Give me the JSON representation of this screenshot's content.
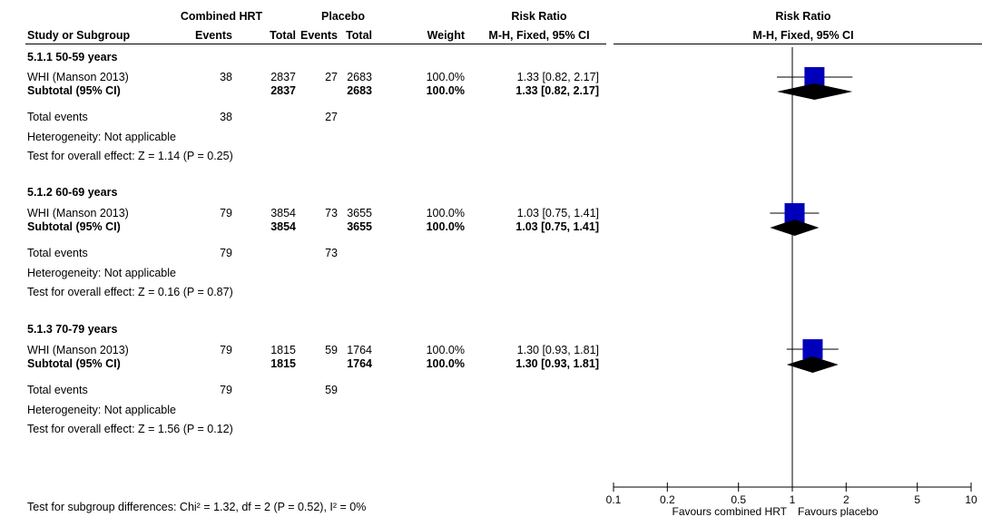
{
  "header": {
    "study_or_subgroup": "Study or Subgroup",
    "group1": "Combined HRT",
    "group2": "Placebo",
    "events": "Events",
    "total": "Total",
    "weight": "Weight",
    "risk_ratio": "Risk Ratio",
    "method": "M-H, Fixed, 95% CI"
  },
  "subgroups": [
    {
      "title": "5.1.1 50-59 years",
      "study": {
        "name": "WHI (Manson 2013)",
        "e1": "38",
        "n1": "2837",
        "e2": "27",
        "n2": "2683",
        "weight": "100.0%",
        "ci_text": "1.33 [0.82, 2.17]"
      },
      "subtotal": {
        "label": "Subtotal (95% CI)",
        "n1": "2837",
        "n2": "2683",
        "weight": "100.0%",
        "ci_text": "1.33 [0.82, 2.17]"
      },
      "total_events": {
        "label": "Total events",
        "e1": "38",
        "e2": "27"
      },
      "heterogeneity": "Heterogeneity: Not applicable",
      "overall_effect": "Test for overall effect: Z = 1.14 (P = 0.25)"
    },
    {
      "title": "5.1.2 60-69 years",
      "study": {
        "name": "WHI (Manson 2013)",
        "e1": "79",
        "n1": "3854",
        "e2": "73",
        "n2": "3655",
        "weight": "100.0%",
        "ci_text": "1.03 [0.75, 1.41]"
      },
      "subtotal": {
        "label": "Subtotal (95% CI)",
        "n1": "3854",
        "n2": "3655",
        "weight": "100.0%",
        "ci_text": "1.03 [0.75, 1.41]"
      },
      "total_events": {
        "label": "Total events",
        "e1": "79",
        "e2": "73"
      },
      "heterogeneity": "Heterogeneity: Not applicable",
      "overall_effect": "Test for overall effect: Z = 0.16 (P = 0.87)"
    },
    {
      "title": "5.1.3 70-79 years",
      "study": {
        "name": "WHI (Manson 2013)",
        "e1": "79",
        "n1": "1815",
        "e2": "59",
        "n2": "1764",
        "weight": "100.0%",
        "ci_text": "1.30 [0.93, 1.81]"
      },
      "subtotal": {
        "label": "Subtotal (95% CI)",
        "n1": "1815",
        "n2": "1764",
        "weight": "100.0%",
        "ci_text": "1.30 [0.93, 1.81]"
      },
      "total_events": {
        "label": "Total events",
        "e1": "79",
        "e2": "59"
      },
      "heterogeneity": "Heterogeneity: Not applicable",
      "overall_effect": "Test for overall effect: Z = 1.56 (P = 0.12)"
    }
  ],
  "subgroup_test": "Test for subgroup differences: Chi² = 1.32, df = 2 (P = 0.52), I² = 0%",
  "chart_data": {
    "type": "forest",
    "title": "Risk Ratio",
    "subtitle": "M-H, Fixed, 95% CI",
    "x_scale": "log",
    "x_range": [
      0.1,
      10
    ],
    "x_ticks": [
      "0.1",
      "0.2",
      "0.5",
      "1",
      "2",
      "5",
      "10"
    ],
    "favours_left": "Favours combined HRT",
    "favours_right": "Favours placebo",
    "study_color": "#0000bb",
    "diamond_color": "#000000",
    "rows": [
      {
        "subgroup": "5.1.1 50-59 years",
        "rr": 1.33,
        "lo": 0.82,
        "hi": 2.17,
        "weight": 100.0
      },
      {
        "subgroup": "5.1.2 60-69 years",
        "rr": 1.03,
        "lo": 0.75,
        "hi": 1.41,
        "weight": 100.0
      },
      {
        "subgroup": "5.1.3 70-79 years",
        "rr": 1.3,
        "lo": 0.93,
        "hi": 1.81,
        "weight": 100.0
      }
    ]
  }
}
